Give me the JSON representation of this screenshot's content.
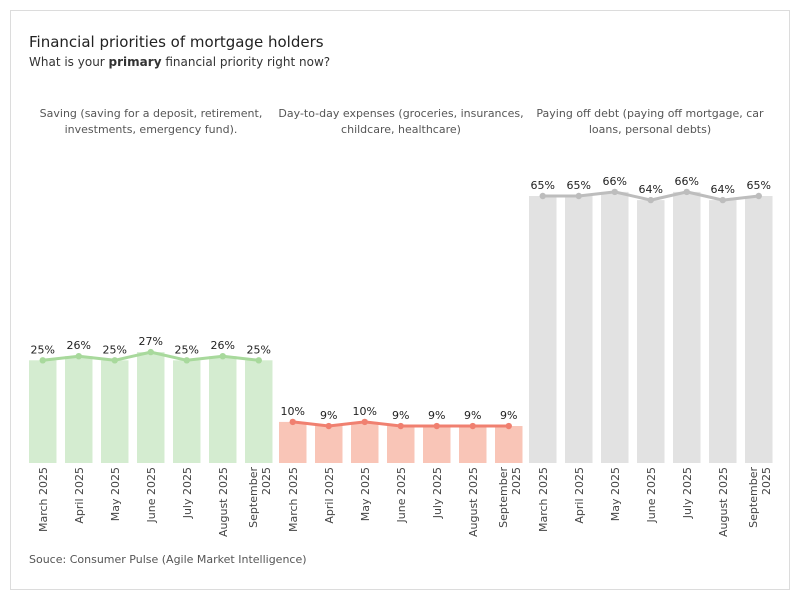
{
  "header": {
    "title": "Financial priorities of mortgage holders",
    "subtitle_prefix": "What is your ",
    "subtitle_bold": "primary",
    "subtitle_suffix": " financial priority right now?"
  },
  "source": "Souce: Consumer Pulse (Agile Market Intelligence)",
  "colors": {
    "saving_bar": "#d4ecd0",
    "saving_line": "#a8d99c",
    "expenses_bar": "#f9c5b7",
    "expenses_line": "#f08070",
    "debt_bar": "#e2e2e2",
    "debt_line": "#bdbdbd"
  },
  "chart_data": {
    "type": "bar",
    "categories": [
      "March 2025",
      "April 2025",
      "May 2025",
      "June 2025",
      "July 2025",
      "August 2025",
      "September 2025"
    ],
    "ylim": [
      0,
      70
    ],
    "grid": false,
    "series": [
      {
        "name": "Saving (saving for a deposit, retirement, investments, emergency fund).",
        "values": [
          25,
          26,
          25,
          27,
          25,
          26,
          25
        ],
        "labels": [
          "25%",
          "26%",
          "25%",
          "27%",
          "25%",
          "26%",
          "25%"
        ]
      },
      {
        "name": "Day-to-day expenses (groceries, insurances, childcare, healthcare)",
        "values": [
          10,
          9,
          10,
          9,
          9,
          9,
          9
        ],
        "labels": [
          "10%",
          "9%",
          "10%",
          "9%",
          "9%",
          "9%",
          "9%"
        ]
      },
      {
        "name": "Paying off debt (paying off mortgage, car loans, personal debts)",
        "values": [
          65,
          65,
          66,
          64,
          66,
          64,
          65
        ],
        "labels": [
          "65%",
          "65%",
          "66%",
          "64%",
          "66%",
          "64%",
          "65%"
        ]
      }
    ]
  }
}
